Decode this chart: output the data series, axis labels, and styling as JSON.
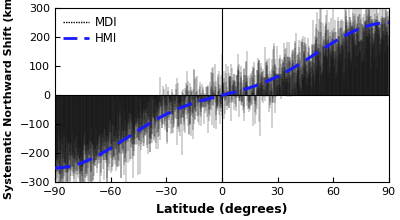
{
  "title": "",
  "xlabel": "Latitude (degrees)",
  "ylabel": "Systematic Northward Shift (km)",
  "xlim": [
    -90,
    90
  ],
  "ylim": [
    -300,
    300
  ],
  "xticks": [
    -90,
    -60,
    -30,
    0,
    30,
    60,
    90
  ],
  "yticks": [
    -300,
    -200,
    -100,
    0,
    100,
    200,
    300
  ],
  "hline_color": "black",
  "vline_color": "black",
  "mdi_color": "black",
  "hmi_color": "#1a1aff",
  "background_color": "#ffffff",
  "legend_mdi_label": "MDI",
  "legend_hmi_label": "HMI",
  "noise_seed": 7
}
